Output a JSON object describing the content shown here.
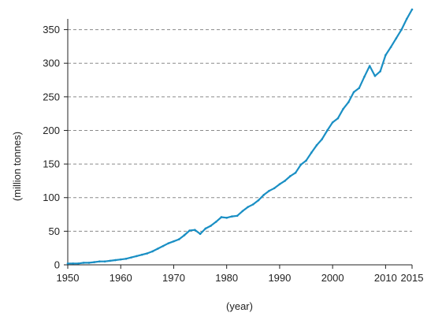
{
  "chart_data": {
    "type": "line",
    "xlabel": "(year)",
    "ylabel": "(million tonnes)",
    "xlim": [
      1950,
      2015
    ],
    "ylim": [
      0,
      380
    ],
    "x_ticks": [
      1950,
      1960,
      1970,
      1980,
      1990,
      2000,
      2010,
      2015
    ],
    "y_ticks": [
      0,
      50,
      100,
      150,
      200,
      250,
      300,
      350
    ],
    "grid": "horizontal dashed",
    "legend": "none",
    "line_color": "#1a8fc4",
    "series": [
      {
        "x": [
          1950,
          1951,
          1952,
          1953,
          1954,
          1955,
          1956,
          1957,
          1958,
          1959,
          1960,
          1961,
          1962,
          1963,
          1964,
          1965,
          1966,
          1967,
          1968,
          1969,
          1970,
          1971,
          1972,
          1973,
          1974,
          1975,
          1976,
          1977,
          1978,
          1979,
          1980,
          1981,
          1982,
          1983,
          1984,
          1985,
          1986,
          1987,
          1988,
          1989,
          1990,
          1991,
          1992,
          1993,
          1994,
          1995,
          1996,
          1997,
          1998,
          1999,
          2000,
          2001,
          2002,
          2003,
          2004,
          2005,
          2006,
          2007,
          2008,
          2009,
          2010,
          2011,
          2012,
          2013,
          2014,
          2015
        ],
        "y": [
          2,
          2,
          2,
          3,
          3,
          4,
          5,
          5,
          6,
          7,
          8,
          9,
          11,
          13,
          15,
          17,
          20,
          24,
          28,
          32,
          35,
          38,
          44,
          51,
          52,
          46,
          54,
          58,
          64,
          71,
          70,
          72,
          73,
          80,
          86,
          90,
          96,
          104,
          110,
          114,
          120,
          125,
          132,
          137,
          149,
          155,
          167,
          178,
          187,
          200,
          212,
          218,
          232,
          242,
          257,
          263,
          280,
          296,
          281,
          288,
          312,
          324,
          337,
          350,
          366,
          380
        ]
      }
    ]
  }
}
